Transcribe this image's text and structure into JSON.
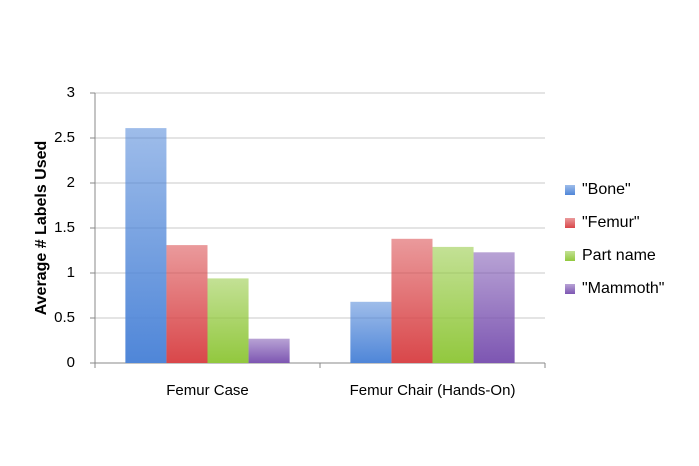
{
  "chart_data": {
    "type": "bar",
    "y_label": "Average # Labels Used",
    "categories": [
      "Femur Case",
      "Femur Chair (Hands-On)"
    ],
    "series": [
      {
        "name": "\"Bone\"",
        "color": "#4f86d8",
        "values": [
          2.61,
          0.68
        ]
      },
      {
        "name": "\"Femur\"",
        "color": "#d9474a",
        "values": [
          1.31,
          1.38
        ]
      },
      {
        "name": "Part name",
        "color": "#92c83e",
        "values": [
          0.94,
          1.29
        ]
      },
      {
        "name": "\"Mammoth\"",
        "color": "#7d56b2",
        "values": [
          0.27,
          1.23
        ]
      }
    ],
    "ylim": [
      0,
      3
    ],
    "yticks": [
      0,
      0.5,
      1,
      1.5,
      2,
      2.5,
      3
    ],
    "grid": true,
    "legend": "right"
  }
}
